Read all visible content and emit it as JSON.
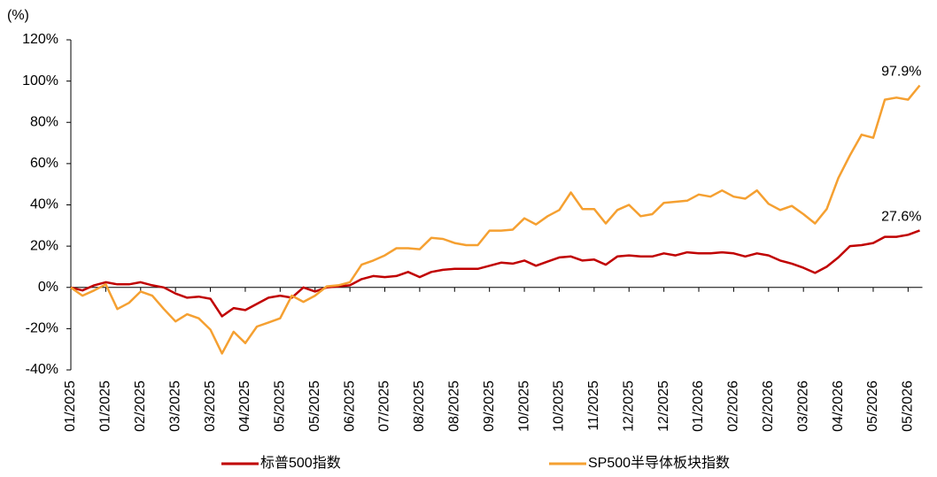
{
  "chart_data": {
    "type": "line",
    "ylabel": "(%)",
    "categories": [
      "01/2025",
      null,
      null,
      "01/2025",
      null,
      null,
      "02/2025",
      null,
      null,
      "03/2025",
      null,
      null,
      "03/2025",
      null,
      null,
      "04/2025",
      null,
      null,
      "05/2025",
      null,
      null,
      "05/2025",
      null,
      null,
      "06/2025",
      null,
      null,
      "07/2025",
      null,
      null,
      "08/2025",
      null,
      null,
      "08/2025",
      null,
      null,
      "09/2025",
      null,
      null,
      "10/2025",
      null,
      null,
      "10/2025",
      null,
      null,
      "11/2025",
      null,
      null,
      "12/2025",
      null,
      null,
      "12/2025",
      null,
      null,
      "01/2026",
      null,
      null,
      "02/2026",
      null,
      null,
      "02/2026",
      null,
      null,
      "03/2026",
      null,
      null,
      "04/2026",
      null,
      null,
      "05/2026",
      null,
      null,
      "05/2026",
      null
    ],
    "series": [
      {
        "name": "标普500指数",
        "color": "#c00000",
        "values": [
          0,
          -1.5,
          1,
          2.5,
          1.5,
          1.5,
          2.5,
          1,
          0,
          -3,
          -5,
          -4.5,
          -5.5,
          -14,
          -10,
          -11,
          -8,
          -5,
          -4,
          -5,
          0,
          -2,
          0,
          0.5,
          1,
          4,
          5.5,
          5,
          5.5,
          7.5,
          5,
          7.5,
          8.5,
          9,
          9,
          9,
          10.5,
          12,
          11.5,
          13,
          10.5,
          12.5,
          14.5,
          15,
          13,
          13.5,
          11,
          15,
          15.5,
          15,
          15,
          16.5,
          15.5,
          17,
          16.5,
          16.5,
          17,
          16.5,
          15,
          16.5,
          15.5,
          13,
          11.5,
          9.5,
          7,
          10,
          14.5,
          20,
          20.5,
          21.5,
          24.5,
          24.5,
          25.5,
          27.6
        ],
        "value_labels": [
          null,
          null,
          null,
          null,
          null,
          null,
          null,
          null,
          null,
          null,
          null,
          null,
          null,
          null,
          null,
          null,
          null,
          null,
          null,
          null,
          null,
          null,
          null,
          null,
          null,
          null,
          null,
          null,
          null,
          null,
          null,
          null,
          null,
          null,
          null,
          null,
          null,
          null,
          null,
          null,
          null,
          null,
          null,
          null,
          null,
          null,
          null,
          null,
          null,
          null,
          null,
          null,
          null,
          null,
          null,
          null,
          null,
          null,
          null,
          null,
          null,
          null,
          null,
          null,
          null,
          null,
          null,
          null,
          null,
          null,
          null,
          null,
          null,
          "27.6%"
        ]
      },
      {
        "name": "SP500半导体板块指数",
        "color": "#f5a031",
        "values": [
          0,
          -4,
          -1.5,
          1.5,
          -10.5,
          -7.5,
          -2,
          -4,
          -10.5,
          -16.5,
          -13,
          -15,
          -20.5,
          -32,
          -21.5,
          -27,
          -19,
          -17,
          -15,
          -4,
          -7,
          -4,
          0.5,
          1,
          2.5,
          11,
          13,
          15.5,
          19,
          19,
          18.5,
          24,
          23.5,
          21.5,
          20.5,
          20.5,
          27.5,
          27.5,
          28,
          33.5,
          30.5,
          34.5,
          37.5,
          46,
          38,
          38,
          31,
          37.5,
          40,
          34.5,
          35.5,
          41,
          41.5,
          42,
          45,
          44,
          47,
          44,
          43,
          47,
          40.5,
          37.5,
          39.5,
          35.5,
          31,
          38,
          53,
          64,
          74,
          72.5,
          91,
          92,
          91,
          97.9
        ],
        "value_labels": [
          null,
          null,
          null,
          null,
          null,
          null,
          null,
          null,
          null,
          null,
          null,
          null,
          null,
          null,
          null,
          null,
          null,
          null,
          null,
          null,
          null,
          null,
          null,
          null,
          null,
          null,
          null,
          null,
          null,
          null,
          null,
          null,
          null,
          null,
          null,
          null,
          null,
          null,
          null,
          null,
          null,
          null,
          null,
          null,
          null,
          null,
          null,
          null,
          null,
          null,
          null,
          null,
          null,
          null,
          null,
          null,
          null,
          null,
          null,
          null,
          null,
          null,
          null,
          null,
          null,
          null,
          null,
          null,
          null,
          null,
          null,
          null,
          null,
          "97.9%"
        ]
      }
    ],
    "ylim": [
      -40,
      120
    ],
    "yticks": [
      {
        "value": -40,
        "label": "-40%"
      },
      {
        "value": -20,
        "label": "-20%"
      },
      {
        "value": 0,
        "label": "0%"
      },
      {
        "value": 20,
        "label": "20%"
      },
      {
        "value": 40,
        "label": "40%"
      },
      {
        "value": 60,
        "label": "60%"
      },
      {
        "value": 80,
        "label": "80%"
      },
      {
        "value": 100,
        "label": "100%"
      },
      {
        "value": 120,
        "label": "120%"
      }
    ],
    "legend": "bottom"
  }
}
